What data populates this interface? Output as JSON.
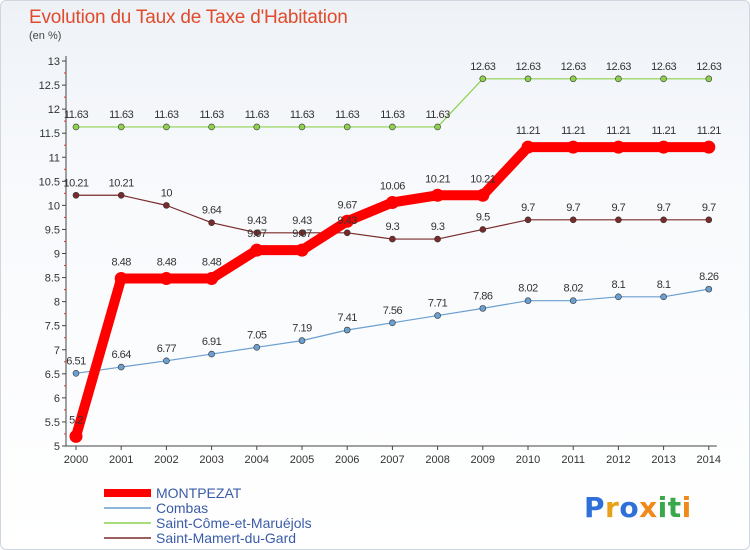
{
  "title": "Evolution du Taux de Taxe d'Habitation",
  "unit": "(en %)",
  "brand": {
    "p": "P",
    "r": "r",
    "o": "o",
    "x": "x",
    "i1": "i",
    "t": "t",
    "i2": "i"
  },
  "chart_data": {
    "type": "line",
    "title": "Evolution du Taux de Taxe d'Habitation",
    "ylabel": "(en %)",
    "xlabel": "",
    "x": [
      2000,
      2001,
      2002,
      2003,
      2004,
      2005,
      2006,
      2007,
      2008,
      2009,
      2010,
      2011,
      2012,
      2013,
      2014
    ],
    "ylim": [
      5,
      13
    ],
    "yticks": [
      5,
      5.5,
      6,
      6.5,
      7,
      7.5,
      8,
      8.5,
      9,
      9.5,
      10,
      10.5,
      11,
      11.5,
      12,
      12.5,
      13
    ],
    "grid": false,
    "legend": "bottom-left",
    "series": [
      {
        "name": "MONTPEZAT",
        "color": "#ff0000",
        "width": 10,
        "marker": 6.5,
        "values": [
          5.2,
          8.48,
          8.48,
          8.48,
          9.07,
          9.07,
          9.67,
          10.06,
          10.21,
          10.21,
          11.21,
          11.21,
          11.21,
          11.21,
          11.21
        ],
        "labels": [
          "5.2",
          "8.48",
          "8.48",
          "8.48",
          "9.07",
          "9.07",
          "9.67",
          "10.06",
          "10.21",
          "10.21",
          "11.21",
          "11.21",
          "11.21",
          "11.21",
          "11.21"
        ]
      },
      {
        "name": "Combas",
        "color": "#6a9fd0",
        "width": 1.2,
        "marker": 3,
        "values": [
          6.51,
          6.64,
          6.77,
          6.91,
          7.05,
          7.19,
          7.41,
          7.56,
          7.71,
          7.86,
          8.02,
          8.02,
          8.1,
          8.1,
          8.26
        ],
        "labels": [
          "6.51",
          "6.64",
          "6.77",
          "6.91",
          "7.05",
          "7.19",
          "7.41",
          "7.56",
          "7.71",
          "7.86",
          "8.02",
          "8.02",
          "8.1",
          "8.1",
          "8.26"
        ]
      },
      {
        "name": "Saint-Côme-et-Maruéjols",
        "color": "#8fd14f",
        "width": 1.2,
        "marker": 3,
        "values": [
          11.63,
          11.63,
          11.63,
          11.63,
          11.63,
          11.63,
          11.63,
          11.63,
          11.63,
          12.63,
          12.63,
          12.63,
          12.63,
          12.63,
          12.63
        ],
        "labels": [
          "11.63",
          "11.63",
          "11.63",
          "11.63",
          "11.63",
          "11.63",
          "11.63",
          "11.63",
          "11.63",
          "12.63",
          "12.63",
          "12.63",
          "12.63",
          "12.63",
          "12.63"
        ]
      },
      {
        "name": "Saint-Mamert-du-Gard",
        "color": "#7a2a2a",
        "width": 1.2,
        "marker": 3,
        "values": [
          10.21,
          10.21,
          10,
          9.64,
          9.43,
          9.43,
          9.43,
          9.3,
          9.3,
          9.5,
          9.7,
          9.7,
          9.7,
          9.7,
          9.7
        ],
        "labels": [
          "10.21",
          "10.21",
          "10",
          "9.64",
          "9.43",
          "9.43",
          "9.43",
          "9.3",
          "9.3",
          "9.5",
          "9.7",
          "9.7",
          "9.7",
          "9.7",
          "9.7"
        ]
      }
    ]
  }
}
